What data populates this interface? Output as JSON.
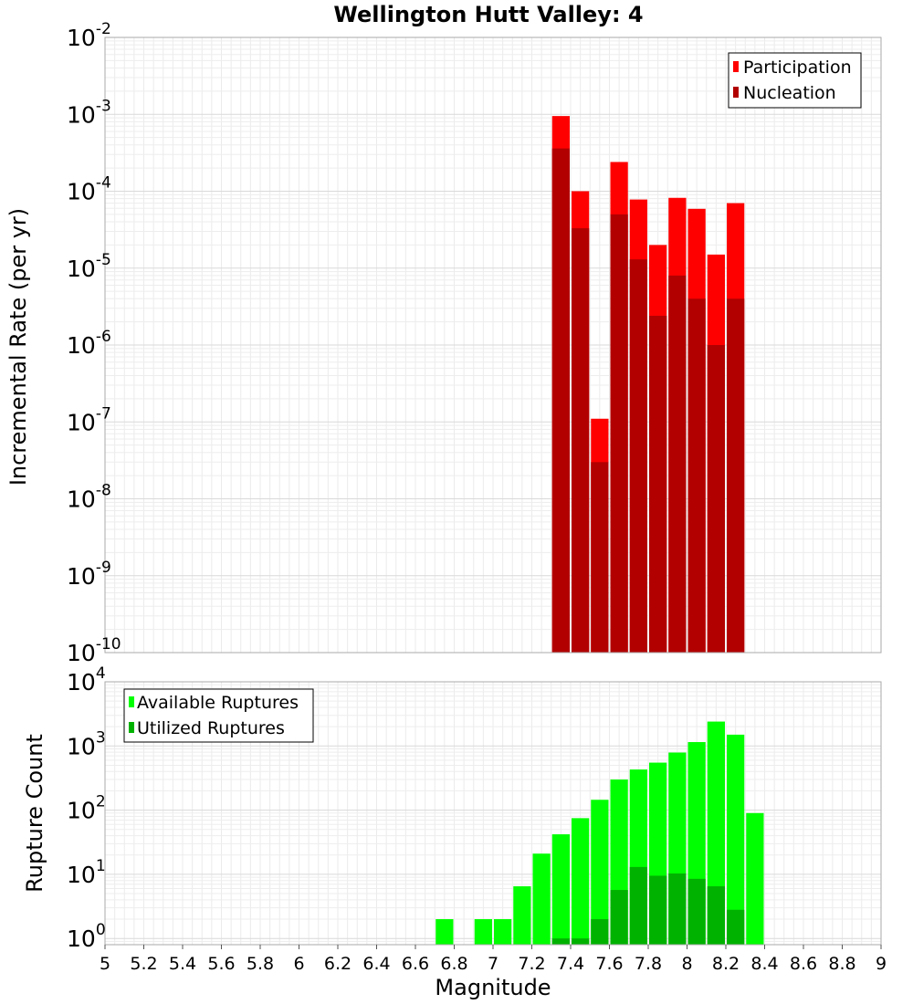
{
  "chart_data": [
    {
      "type": "bar",
      "title": "Wellington Hutt Valley: 4",
      "ylabel": "Incremental Rate (per yr)",
      "xlabel": "",
      "yscale": "log",
      "ylim": [
        1e-10,
        0.01
      ],
      "xlim": [
        5,
        9
      ],
      "grid": true,
      "legend_position": "top-right",
      "y_ticks": [
        {
          "base": "10",
          "exp": "-10"
        },
        {
          "base": "10",
          "exp": "-9"
        },
        {
          "base": "10",
          "exp": "-8"
        },
        {
          "base": "10",
          "exp": "-7"
        },
        {
          "base": "10",
          "exp": "-6"
        },
        {
          "base": "10",
          "exp": "-5"
        },
        {
          "base": "10",
          "exp": "-4"
        },
        {
          "base": "10",
          "exp": "-3"
        },
        {
          "base": "10",
          "exp": "-2"
        }
      ],
      "x": [
        7.35,
        7.45,
        7.55,
        7.65,
        7.75,
        7.85,
        7.95,
        8.05,
        8.15,
        8.25
      ],
      "series": [
        {
          "name": "Participation",
          "color": "#ff0000",
          "values": [
            0.00095,
            0.0001,
            1.1e-07,
            0.00024,
            7.8e-05,
            2e-05,
            8.2e-05,
            5.9e-05,
            1.5e-05,
            7e-05
          ]
        },
        {
          "name": "Nucleation",
          "color": "#b20000",
          "values": [
            0.00036,
            3.3e-05,
            3e-08,
            5e-05,
            1.3e-05,
            2.4e-06,
            8e-06,
            4e-06,
            1e-06,
            4e-06
          ]
        }
      ]
    },
    {
      "type": "bar",
      "title": "",
      "ylabel": "Rupture Count",
      "xlabel": "Magnitude",
      "yscale": "log",
      "ylim": [
        0.8,
        10000.0
      ],
      "xlim": [
        5,
        9
      ],
      "grid": true,
      "legend_position": "top-left",
      "y_ticks": [
        {
          "base": "10",
          "exp": "0"
        },
        {
          "base": "10",
          "exp": "1"
        },
        {
          "base": "10",
          "exp": "2"
        },
        {
          "base": "10",
          "exp": "3"
        },
        {
          "base": "10",
          "exp": "4"
        }
      ],
      "x_ticks": [
        "5",
        "5.2",
        "5.4",
        "5.6",
        "5.8",
        "6",
        "6.2",
        "6.4",
        "6.6",
        "6.8",
        "7",
        "7.2",
        "7.4",
        "7.6",
        "7.8",
        "8",
        "8.2",
        "8.4",
        "8.6",
        "8.8",
        "9"
      ],
      "x": [
        6.75,
        6.85,
        6.95,
        7.05,
        7.15,
        7.25,
        7.35,
        7.45,
        7.55,
        7.65,
        7.75,
        7.85,
        7.95,
        8.05,
        8.15,
        8.25,
        8.35
      ],
      "series": [
        {
          "name": "Available Ruptures",
          "color": "#00ff00",
          "values": [
            2,
            0,
            2,
            2,
            6.5,
            21,
            42,
            75,
            145,
            300,
            430,
            550,
            790,
            1150,
            2400,
            1500,
            90
          ]
        },
        {
          "name": "Utilized Ruptures",
          "color": "#00b200",
          "values": [
            0,
            0,
            0,
            0,
            0,
            0,
            1,
            1,
            2,
            5.7,
            13,
            9.5,
            10.3,
            8.5,
            6.5,
            2.8,
            0
          ]
        }
      ]
    }
  ]
}
